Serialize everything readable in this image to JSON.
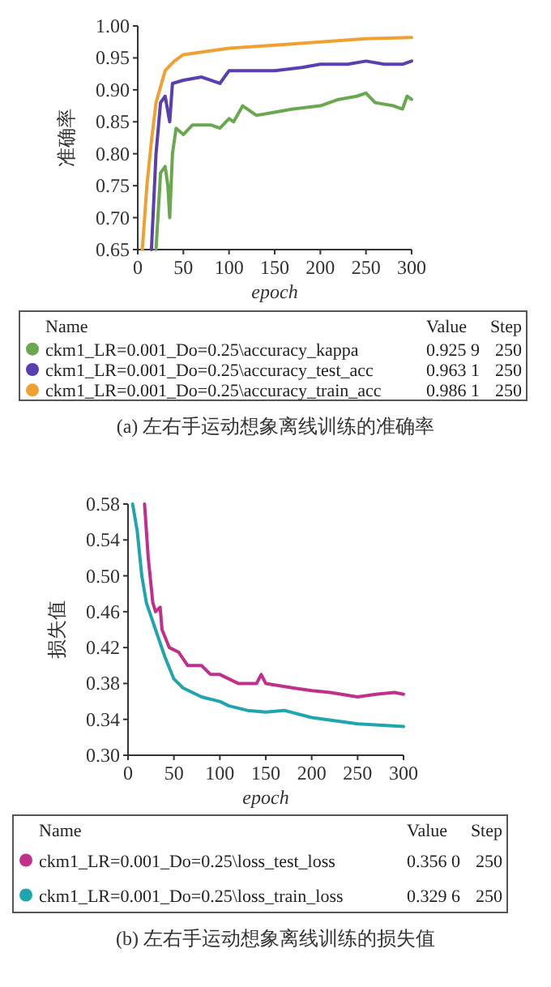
{
  "chart_data": [
    {
      "type": "line",
      "title": "(a) 左右手运动想象离线训练的准确率",
      "xlabel": "epoch",
      "ylabel": "准确率",
      "legend_title": "Name",
      "legend": "bottom",
      "grid": false,
      "xlim": [
        0,
        300
      ],
      "xticks": [
        0,
        50,
        100,
        150,
        200,
        250,
        300
      ],
      "ylim": [
        0.65,
        1.0
      ],
      "yticks": [
        {
          "value": 0.65,
          "label": "0.65"
        },
        {
          "value": 0.7,
          "label": "0.70"
        },
        {
          "value": 0.75,
          "label": "0.75"
        },
        {
          "value": 0.8,
          "label": "0.80"
        },
        {
          "value": 0.85,
          "label": "0.85"
        },
        {
          "value": 0.9,
          "label": "0.90"
        },
        {
          "value": 0.95,
          "label": "0.95"
        },
        {
          "value": 1.0,
          "label": "1.00"
        }
      ],
      "annotations": [
        "Value",
        "Step",
        "0.925 9",
        "250",
        "0.963 1",
        "250",
        "0.986 1",
        "250"
      ],
      "series": [
        {
          "name": "ckm1_LR=0.001_Do=0.25\\accuracy_kappa",
          "color": "#6aa84f",
          "x": [
            20,
            25,
            30,
            33,
            35,
            38,
            42,
            50,
            60,
            70,
            80,
            90,
            100,
            105,
            115,
            130,
            150,
            170,
            200,
            220,
            240,
            250,
            260,
            280,
            290,
            295,
            300
          ],
          "values": [
            0.65,
            0.77,
            0.78,
            0.75,
            0.7,
            0.8,
            0.84,
            0.83,
            0.845,
            0.845,
            0.845,
            0.84,
            0.855,
            0.85,
            0.875,
            0.86,
            0.865,
            0.87,
            0.875,
            0.885,
            0.89,
            0.895,
            0.88,
            0.875,
            0.87,
            0.89,
            0.885
          ]
        },
        {
          "name": "ckm1_LR=0.001_Do=0.25\\accuracy_test_acc",
          "color": "#5a3fb0",
          "x": [
            15,
            20,
            25,
            30,
            35,
            38,
            50,
            70,
            90,
            100,
            120,
            150,
            180,
            200,
            230,
            250,
            270,
            290,
            300
          ],
          "values": [
            0.65,
            0.8,
            0.88,
            0.89,
            0.85,
            0.91,
            0.915,
            0.92,
            0.91,
            0.93,
            0.93,
            0.93,
            0.935,
            0.94,
            0.94,
            0.945,
            0.94,
            0.94,
            0.945
          ]
        },
        {
          "name": "ckm1_LR=0.001_Do=0.25\\accuracy_train_acc",
          "color": "#f0a030",
          "x": [
            5,
            10,
            15,
            20,
            30,
            40,
            50,
            75,
            100,
            150,
            200,
            250,
            300
          ],
          "values": [
            0.65,
            0.75,
            0.82,
            0.88,
            0.93,
            0.945,
            0.955,
            0.96,
            0.965,
            0.97,
            0.975,
            0.98,
            0.982
          ]
        }
      ]
    },
    {
      "type": "line",
      "title": "(b) 左右手运动想象离线训练的损失值",
      "xlabel": "epoch",
      "ylabel": "损失值",
      "legend_title": "Name",
      "legend": "bottom",
      "grid": false,
      "xlim": [
        0,
        300
      ],
      "xticks": [
        0,
        50,
        100,
        150,
        200,
        250,
        300
      ],
      "ylim": [
        0.3,
        0.58
      ],
      "yticks": [
        {
          "value": 0.3,
          "label": "0.30"
        },
        0.34,
        0.38,
        0.42,
        0.46,
        {
          "value": 0.5,
          "label": "0.50"
        },
        0.54,
        0.58
      ],
      "annotations": [
        "Value",
        "Step",
        "0.356 0",
        "250",
        "0.329 6",
        "250"
      ],
      "series": [
        {
          "name": "ckm1_LR=0.001_Do=0.25\\loss_test_loss",
          "color": "#c0308a",
          "x": [
            18,
            22,
            27,
            30,
            35,
            37,
            45,
            55,
            65,
            80,
            90,
            100,
            120,
            140,
            145,
            150,
            180,
            200,
            220,
            250,
            270,
            290,
            300
          ],
          "values": [
            0.58,
            0.52,
            0.47,
            0.46,
            0.465,
            0.44,
            0.42,
            0.415,
            0.4,
            0.4,
            0.39,
            0.39,
            0.38,
            0.38,
            0.39,
            0.38,
            0.375,
            0.372,
            0.37,
            0.365,
            0.368,
            0.37,
            0.368
          ]
        },
        {
          "name": "ckm1_LR=0.001_Do=0.25\\loss_train_loss",
          "color": "#1fa5b0",
          "x": [
            5,
            10,
            15,
            20,
            30,
            40,
            50,
            60,
            70,
            80,
            100,
            110,
            130,
            150,
            170,
            200,
            250,
            300
          ],
          "values": [
            0.58,
            0.55,
            0.5,
            0.47,
            0.44,
            0.41,
            0.385,
            0.375,
            0.37,
            0.365,
            0.36,
            0.355,
            0.35,
            0.348,
            0.35,
            0.342,
            0.335,
            0.332
          ]
        }
      ]
    }
  ]
}
